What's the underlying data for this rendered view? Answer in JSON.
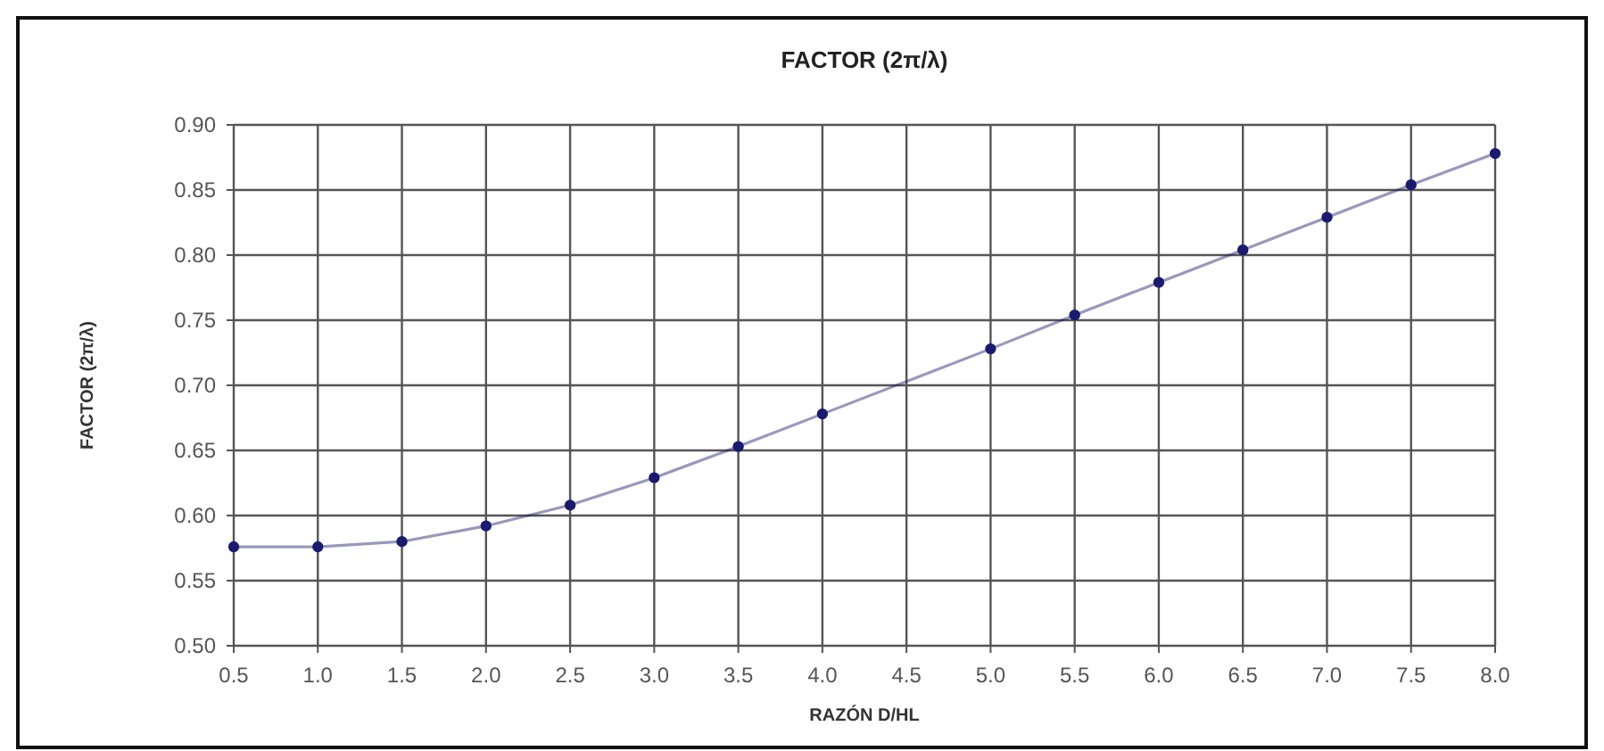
{
  "chart_data": {
    "type": "line",
    "title": "FACTOR (2π/λ)",
    "xlabel": "RAZÓN D/HL",
    "ylabel": "FACTOR (2π/λ)",
    "x": [
      0.5,
      1.0,
      1.5,
      2.0,
      2.5,
      3.0,
      3.5,
      4.0,
      5.0,
      5.5,
      6.0,
      6.5,
      7.0,
      7.5,
      8.0
    ],
    "series": [
      {
        "color": "#1a1a6e",
        "values": [
          0.576,
          0.576,
          0.58,
          0.592,
          0.608,
          0.629,
          0.653,
          0.678,
          0.728,
          0.754,
          0.779,
          0.804,
          0.829,
          0.854,
          0.878
        ]
      }
    ],
    "xlim": [
      0.5,
      8.0
    ],
    "xticks": [
      {
        "value": 0.5,
        "label": "0.5"
      },
      {
        "value": 1,
        "label": "1.0"
      },
      {
        "value": 1.5,
        "label": "1.5"
      },
      {
        "value": 2,
        "label": "2.0"
      },
      {
        "value": 2.5,
        "label": "2.5"
      },
      {
        "value": 3,
        "label": "3.0"
      },
      {
        "value": 3.5,
        "label": "3.5"
      },
      {
        "value": 4,
        "label": "4.0"
      },
      {
        "value": 4.5,
        "label": "4.5"
      },
      {
        "value": 5,
        "label": "5.0"
      },
      {
        "value": 5.5,
        "label": "5.5"
      },
      {
        "value": 6,
        "label": "6.0"
      },
      {
        "value": 6.5,
        "label": "6.5"
      },
      {
        "value": 7,
        "label": "7.0"
      },
      {
        "value": 7.5,
        "label": "7.5"
      },
      {
        "value": 8,
        "label": "8.0"
      }
    ],
    "ylim": [
      0.5,
      0.9
    ],
    "yticks": [
      {
        "value": 0.5,
        "label": "0.50"
      },
      {
        "value": 0.55,
        "label": "0.55"
      },
      {
        "value": 0.6,
        "label": "0.60"
      },
      {
        "value": 0.65,
        "label": "0.65"
      },
      {
        "value": 0.7,
        "label": "0.70"
      },
      {
        "value": 0.75,
        "label": "0.75"
      },
      {
        "value": 0.8,
        "label": "0.80"
      },
      {
        "value": 0.85,
        "label": "0.85"
      },
      {
        "value": 0.9,
        "label": "0.90"
      }
    ],
    "grid": true,
    "marker": "circle",
    "line_style": "solid"
  }
}
